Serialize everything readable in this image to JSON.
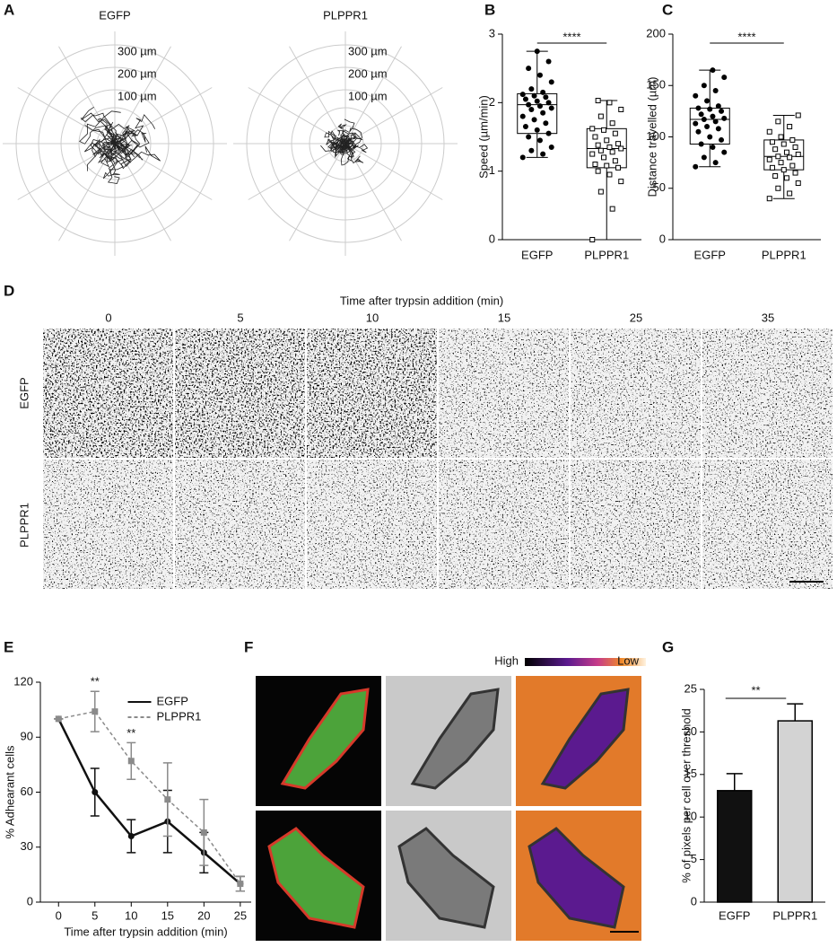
{
  "panel_labels": [
    "A",
    "B",
    "C",
    "D",
    "E",
    "F",
    "G"
  ],
  "panel_a": {
    "columns": [
      "EGFP",
      "PLPPR1"
    ],
    "ring_labels": [
      "300 µm",
      "200 µm",
      "100 µm"
    ]
  },
  "panel_d": {
    "title": "Time after trypsin addition (min)",
    "times": [
      "0",
      "5",
      "10",
      "15",
      "25",
      "35"
    ],
    "rows": [
      "EGFP",
      "PLPPR1"
    ]
  },
  "panel_f": {
    "scale": [
      "High",
      "Low"
    ]
  },
  "chart_data": [
    {
      "type": "box",
      "ylabel": "Speed (µm/min)",
      "categories": [
        "EGFP",
        "PLPPR1"
      ],
      "markers": [
        "circle",
        "square"
      ],
      "significance": "****",
      "ylim": [
        0,
        3
      ],
      "yticks": [
        0,
        1,
        2,
        3
      ],
      "boxes": [
        {
          "min": 1.2,
          "q1": 1.55,
          "median": 1.97,
          "q3": 2.13,
          "max": 2.75,
          "points": [
            1.2,
            1.25,
            1.3,
            1.35,
            1.45,
            1.5,
            1.55,
            1.6,
            1.65,
            1.7,
            1.75,
            1.8,
            1.85,
            1.9,
            1.92,
            1.95,
            1.97,
            2.0,
            2.02,
            2.05,
            2.08,
            2.1,
            2.12,
            2.15,
            2.2,
            2.3,
            2.4,
            2.5,
            2.6,
            2.75
          ]
        },
        {
          "min": 0,
          "q1": 1.05,
          "median": 1.33,
          "q3": 1.62,
          "max": 2.03,
          "points": [
            0,
            0.45,
            0.7,
            0.85,
            0.95,
            1.0,
            1.05,
            1.08,
            1.1,
            1.15,
            1.2,
            1.25,
            1.28,
            1.3,
            1.33,
            1.35,
            1.38,
            1.4,
            1.45,
            1.5,
            1.55,
            1.6,
            1.62,
            1.7,
            1.8,
            1.9,
            2.0,
            2.03
          ]
        }
      ]
    },
    {
      "type": "box",
      "ylabel": "Distance travelled (µm)",
      "categories": [
        "EGFP",
        "PLPPR1"
      ],
      "markers": [
        "circle",
        "square"
      ],
      "significance": "****",
      "ylim": [
        0,
        200
      ],
      "yticks": [
        0,
        50,
        100,
        150,
        200
      ],
      "boxes": [
        {
          "min": 71,
          "q1": 93,
          "median": 117,
          "q3": 128,
          "max": 165,
          "points": [
            71,
            75,
            80,
            85,
            90,
            93,
            97,
            100,
            105,
            108,
            110,
            113,
            115,
            117,
            118,
            120,
            122,
            125,
            127,
            128,
            130,
            135,
            140,
            145,
            150,
            158,
            165
          ]
        },
        {
          "min": 40,
          "q1": 68,
          "median": 81,
          "q3": 97,
          "max": 121,
          "points": [
            40,
            45,
            50,
            55,
            60,
            62,
            65,
            68,
            70,
            72,
            75,
            78,
            80,
            81,
            83,
            85,
            88,
            90,
            93,
            95,
            97,
            100,
            105,
            110,
            115,
            121
          ]
        }
      ]
    },
    {
      "type": "line",
      "xlabel": "Time after trypsin addition (min)",
      "ylabel": "% Adhearant cells",
      "x": [
        0,
        5,
        10,
        15,
        20,
        25
      ],
      "xlim": [
        -2.5,
        26.5
      ],
      "xticks": [
        0,
        5,
        10,
        15,
        20,
        25
      ],
      "ylim": [
        0,
        120
      ],
      "yticks": [
        0,
        30,
        60,
        90,
        120
      ],
      "legend": "upper center",
      "series": [
        {
          "name": "EGFP",
          "color": "#111111",
          "dash": false,
          "values": [
            100,
            60,
            36,
            44,
            27,
            10
          ],
          "errors": [
            0,
            13,
            9,
            17,
            11,
            4
          ]
        },
        {
          "name": "PLPPR1",
          "color": "#8a8a8a",
          "dash": true,
          "values": [
            100,
            104,
            77,
            56,
            38,
            10
          ],
          "errors": [
            0,
            11,
            10,
            20,
            18,
            4
          ]
        }
      ],
      "annotations": [
        {
          "x": 5,
          "text": "**"
        },
        {
          "x": 10,
          "text": "**"
        }
      ]
    },
    {
      "type": "bar",
      "ylabel": "% of pixels per cell over threshold",
      "categories": [
        "EGFP",
        "PLPPR1"
      ],
      "values": [
        13.1,
        21.3
      ],
      "errors": [
        2.0,
        2.0
      ],
      "colors": [
        "#111111",
        "#d3d3d3"
      ],
      "ylim": [
        0,
        25
      ],
      "yticks": [
        0,
        5,
        10,
        15,
        20,
        25
      ],
      "significance": "**"
    }
  ]
}
